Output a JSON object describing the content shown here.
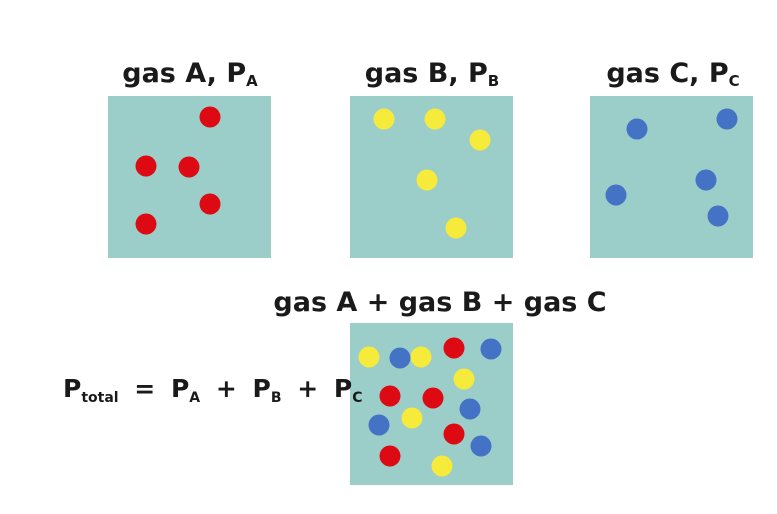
{
  "colors": {
    "box": "#9bcdc9",
    "gas_a": "#dd0a14",
    "gas_b": "#f6ea3b",
    "gas_c": "#4472c4"
  },
  "boxes": [
    {
      "label_main": "gas A, P",
      "label_sub": "A"
    },
    {
      "label_main": "gas B, P",
      "label_sub": "B"
    },
    {
      "label_main": "gas C, P",
      "label_sub": "C"
    },
    {
      "label_main": "gas A + gas B + gas C",
      "label_sub": ""
    }
  ],
  "equation": {
    "p1": "P",
    "s1": "total",
    "eq": "=",
    "p2": "P",
    "s2": "A",
    "plus1": "+",
    "p3": "P",
    "s3": "B",
    "plus2": "+",
    "p4": "P",
    "s4": "C"
  }
}
